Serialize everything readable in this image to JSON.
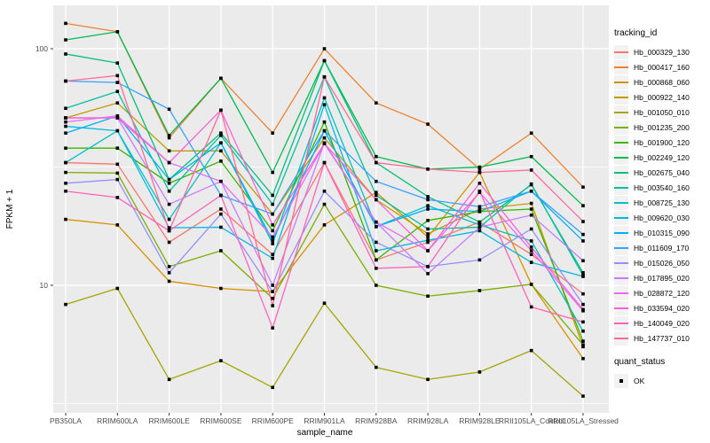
{
  "axes": {
    "x": {
      "label": "sample_name"
    },
    "y": {
      "label": "FPKM + 1",
      "ticks": [
        {
          "value": 100,
          "label": "100"
        },
        {
          "value": 10,
          "label": "10"
        }
      ]
    }
  },
  "legend": {
    "tracking_title": "tracking_id",
    "quant_title": "quant_status",
    "quant_items": [
      {
        "label": "OK"
      }
    ]
  },
  "chart_data": {
    "type": "line",
    "title": "",
    "xlabel": "sample_name",
    "ylabel": "FPKM + 1",
    "y_scale": "log10",
    "ylim": [
      2.96,
      152
    ],
    "y_major_gridlines": [
      10,
      100
    ],
    "y_minor_gridlines": [
      3.162,
      31.62
    ],
    "grid": "on",
    "panel_bg": "#EBEBEB",
    "gridline_color": "#FFFFFF",
    "point_shape": "square",
    "point_color": "#000000",
    "legend_position": "right",
    "x_categories": [
      "PB350LA",
      "RRIM600LA",
      "RRIM600LE",
      "RRIM600SE",
      "RRIM600PE",
      "RRIM901LA",
      "RRIM928BA",
      "RRIM928LA",
      "RRIM928LE",
      "RRII105LA_Control",
      "RRII105LA_Stressed"
    ],
    "series": [
      {
        "name": "Hb_000329_130",
        "color": "#F8766D",
        "values": [
          33,
          32.5,
          15.2,
          21,
          13.5,
          33,
          12.8,
          15.2,
          18.5,
          13.5,
          9.2
        ]
      },
      {
        "name": "Hb_000417_160",
        "color": "#EA8331",
        "values": [
          128,
          118,
          42,
          75,
          44,
          100,
          59,
          48,
          31,
          44,
          26
        ]
      },
      {
        "name": "Hb_000868_060",
        "color": "#D89000",
        "values": [
          19,
          18,
          10.4,
          9.7,
          9.4,
          18,
          24.7,
          16,
          30,
          10.1,
          4.9
        ]
      },
      {
        "name": "Hb_000922_140",
        "color": "#C09B00",
        "values": [
          51,
          59,
          37,
          37,
          20,
          42,
          23,
          16.5,
          21,
          22.2,
          5.5
        ]
      },
      {
        "name": "Hb_001050_010",
        "color": "#A3A500",
        "values": [
          8.3,
          9.7,
          4.0,
          4.8,
          3.7,
          8.4,
          4.5,
          4.0,
          4.3,
          5.3,
          3.4
        ]
      },
      {
        "name": "Hb_001235_200",
        "color": "#7CAE00",
        "values": [
          30,
          29.8,
          12,
          14,
          8.8,
          22,
          10,
          9.0,
          9.5,
          10.1,
          5.6
        ]
      },
      {
        "name": "Hb_001900_120",
        "color": "#39B600",
        "values": [
          38,
          38,
          27,
          33.5,
          17,
          49,
          12.8,
          18.8,
          20.5,
          21,
          5.8
        ]
      },
      {
        "name": "Hb_002249_120",
        "color": "#00BB4E",
        "values": [
          109,
          118,
          43,
          75,
          30,
          89,
          35,
          31,
          31.6,
          35,
          21.7
        ]
      },
      {
        "name": "Hb_002675_040",
        "color": "#00BF7D",
        "values": [
          95,
          87,
          28,
          44,
          24,
          89,
          33,
          23.7,
          18.5,
          26.6,
          11.3
        ]
      },
      {
        "name": "Hb_003540_160",
        "color": "#00C1A3",
        "values": [
          56,
          66,
          25,
          43,
          22,
          76,
          24,
          17.3,
          17.6,
          26.8,
          11.0
        ]
      },
      {
        "name": "Hb_008725_130",
        "color": "#00BFC4",
        "values": [
          33,
          45,
          19,
          40,
          15,
          62,
          17.7,
          21.7,
          18,
          15.4,
          6.4
        ]
      },
      {
        "name": "Hb_009620_030",
        "color": "#00BAE0",
        "values": [
          47,
          45,
          17.5,
          17.6,
          13,
          58,
          14,
          15.5,
          17,
          12.5,
          10.9
        ]
      },
      {
        "name": "Hb_010315_090",
        "color": "#00B0F6",
        "values": [
          44,
          52,
          28,
          40,
          15.5,
          45,
          17.7,
          21,
          20.5,
          25,
          15.4
        ]
      },
      {
        "name": "Hb_011609_170",
        "color": "#35A2FF",
        "values": [
          73,
          72,
          55.5,
          24,
          20,
          45,
          27.5,
          23,
          21.5,
          25,
          16.4
        ]
      },
      {
        "name": "Hb_015026_050",
        "color": "#9590FF",
        "values": [
          27,
          28,
          11.3,
          20,
          9.4,
          25,
          15.2,
          12,
          12.8,
          17.3,
          8.3
        ]
      },
      {
        "name": "Hb_017895_020",
        "color": "#C77CFF",
        "values": [
          51,
          51,
          22,
          27.5,
          10,
          40,
          18.5,
          11.2,
          17.6,
          19.8,
          12.7
        ]
      },
      {
        "name": "Hb_028872_120",
        "color": "#E76BF3",
        "values": [
          49,
          52,
          33,
          27.5,
          16,
          39.7,
          18.5,
          14,
          24.7,
          14,
          7.8
        ]
      },
      {
        "name": "Hb_033594_020",
        "color": "#FA62DB",
        "values": [
          51,
          51,
          33,
          55,
          18,
          39.7,
          23,
          14,
          27,
          14.5,
          7.9
        ]
      },
      {
        "name": "Hb_140049_020",
        "color": "#FF62BC",
        "values": [
          25,
          23.5,
          17,
          24,
          6.6,
          33,
          11.8,
          12,
          25,
          8.1,
          7.0
        ]
      },
      {
        "name": "Hb_147737_010",
        "color": "#FF6A98",
        "values": [
          73,
          77,
          17,
          55,
          8.2,
          76,
          33,
          31,
          30,
          30.7,
          18.6
        ]
      }
    ]
  }
}
